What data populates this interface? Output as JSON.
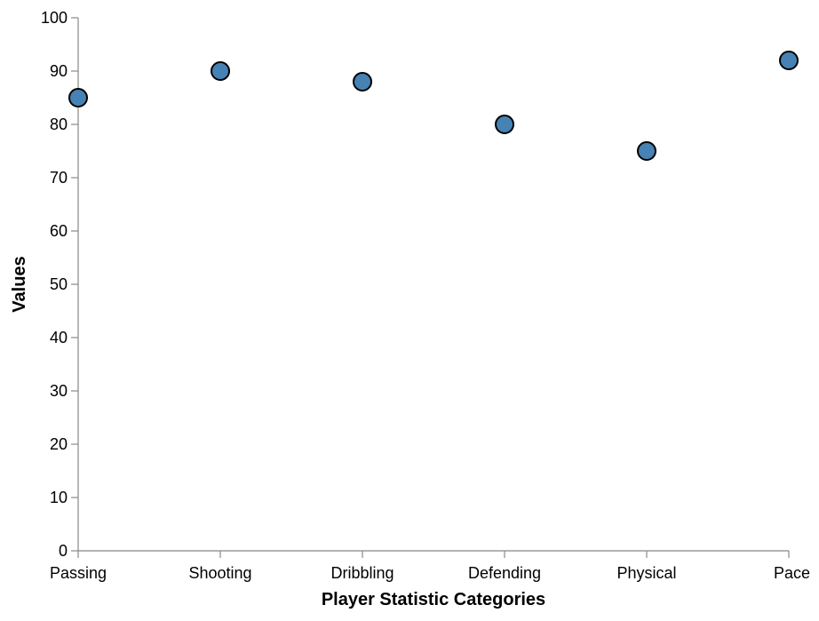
{
  "chart_data": {
    "type": "scatter",
    "categories": [
      "Passing",
      "Shooting",
      "Dribbling",
      "Defending",
      "Physical",
      "Pace"
    ],
    "values": [
      85,
      90,
      88,
      80,
      75,
      92
    ],
    "xlabel": "Player Statistic Categories",
    "ylabel": "Values",
    "ylim": [
      0,
      100
    ],
    "yticks": [
      0,
      10,
      20,
      30,
      40,
      50,
      60,
      70,
      80,
      90,
      100
    ],
    "grid": false,
    "point_color": "#4682b4",
    "point_stroke": "#000000"
  }
}
